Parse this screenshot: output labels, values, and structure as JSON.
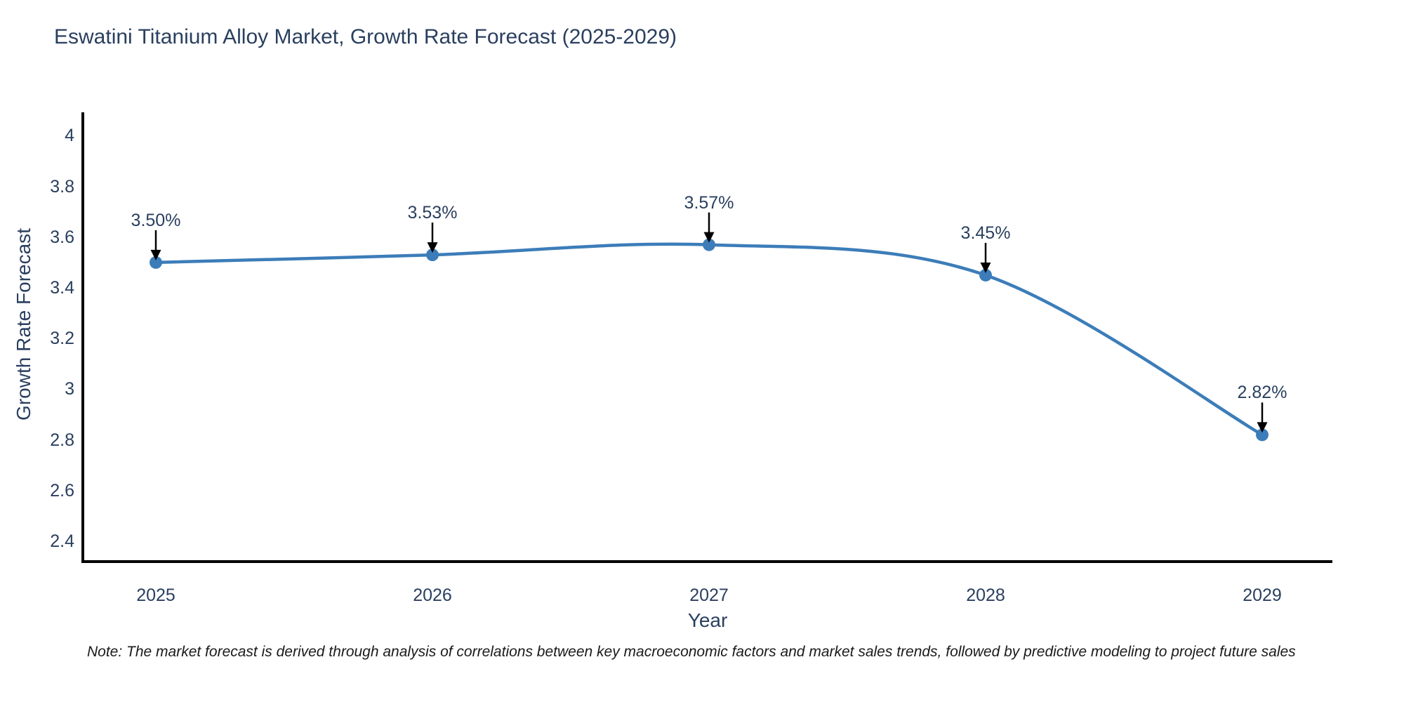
{
  "title": "Eswatini Titanium Alloy Market, Growth Rate Forecast (2025-2029)",
  "note": "Note: The market forecast is derived through analysis of correlations between key macroeconomic factors and market sales trends, followed by predictive modeling to project future sales",
  "chart_data": {
    "type": "line",
    "title": "Eswatini Titanium Alloy Market, Growth Rate Forecast (2025-2029)",
    "xlabel": "Year",
    "ylabel": "Growth Rate Forecast",
    "x": [
      2025,
      2026,
      2027,
      2028,
      2029
    ],
    "xtick_labels": [
      "2025",
      "2026",
      "2027",
      "2028",
      "2029"
    ],
    "series": [
      {
        "name": "Growth Rate Forecast",
        "values": [
          3.5,
          3.53,
          3.57,
          3.45,
          2.82
        ],
        "point_labels": [
          "3.50%",
          "3.53%",
          "3.57%",
          "3.45%",
          "2.82%"
        ]
      }
    ],
    "yticks": [
      2.4,
      2.6,
      2.8,
      3,
      3.2,
      3.4,
      3.6,
      3.8,
      4
    ],
    "ytick_labels": [
      "2.4",
      "2.6",
      "2.8",
      "3",
      "3.2",
      "3.4",
      "3.6",
      "3.8",
      "4"
    ],
    "ylim": [
      2.32,
      4.1
    ],
    "grid": false,
    "legend_position": "none",
    "line_shape": "spline",
    "line_color": "#3c7db9",
    "marker_color": "#3c7db9",
    "arrow_color": "#000000",
    "axis_color": "#000000",
    "text_color": "#2a3f5f"
  }
}
